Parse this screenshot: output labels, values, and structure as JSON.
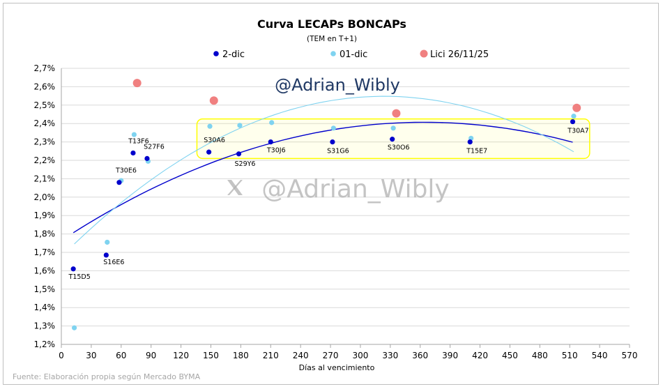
{
  "chart_data": {
    "type": "scatter",
    "title": "Curva LECAPs BONCAPs",
    "subtitle": "(TEM en T+1)",
    "xlabel": "Días al vencimiento",
    "ylabel": "",
    "xlim": [
      0,
      570
    ],
    "ylim": [
      1.2,
      2.7
    ],
    "x_ticks": [
      "0",
      "30",
      "60",
      "90",
      "120",
      "150",
      "180",
      "210",
      "240",
      "270",
      "300",
      "330",
      "360",
      "390",
      "420",
      "450",
      "480",
      "510",
      "540",
      "570"
    ],
    "y_ticks": [
      "1,2%",
      "1,3%",
      "1,4%",
      "1,5%",
      "1,6%",
      "1,7%",
      "1,8%",
      "1,9%",
      "2,0%",
      "2,1%",
      "2,2%",
      "2,3%",
      "2,4%",
      "2,5%",
      "2,6%",
      "2,7%"
    ],
    "grid": "horizontal",
    "legend_position": "top",
    "watermark_top": "@Adrian_Wibly",
    "watermark_center": "@Adrian_Wibly",
    "watermark_icon": "x-logo-icon",
    "source": "Fuente: Elaboración propia según Mercado BYMA",
    "highlight_color": "#ffff00",
    "series": [
      {
        "name": "2-dic",
        "color": "#0000cc",
        "points": [
          {
            "x": 12,
            "y": 1.61,
            "label": "T15D5"
          },
          {
            "x": 45,
            "y": 1.685,
            "label": "S16E6"
          },
          {
            "x": 58,
            "y": 2.08,
            "label": "T30E6"
          },
          {
            "x": 72,
            "y": 2.24,
            "label": "T13F6"
          },
          {
            "x": 86,
            "y": 2.21,
            "label": "S27F6"
          },
          {
            "x": 148,
            "y": 2.245,
            "label": "S30A6"
          },
          {
            "x": 178,
            "y": 2.235,
            "label": "S29Y6"
          },
          {
            "x": 210,
            "y": 2.3,
            "label": "T30J6"
          },
          {
            "x": 272,
            "y": 2.3,
            "label": "S31G6"
          },
          {
            "x": 332,
            "y": 2.315,
            "label": "S30O6"
          },
          {
            "x": 410,
            "y": 2.3,
            "label": "T15E7"
          },
          {
            "x": 513,
            "y": 2.41,
            "label": "T30A7"
          }
        ]
      },
      {
        "name": "01-dic",
        "color": "#7fd3f0",
        "points": [
          {
            "x": 13,
            "y": 1.29
          },
          {
            "x": 46,
            "y": 1.755
          },
          {
            "x": 60,
            "y": 2.09
          },
          {
            "x": 73,
            "y": 2.34
          },
          {
            "x": 87,
            "y": 2.195
          },
          {
            "x": 149,
            "y": 2.385
          },
          {
            "x": 179,
            "y": 2.39
          },
          {
            "x": 211,
            "y": 2.405
          },
          {
            "x": 273,
            "y": 2.375
          },
          {
            "x": 333,
            "y": 2.375
          },
          {
            "x": 411,
            "y": 2.32
          },
          {
            "x": 514,
            "y": 2.44
          }
        ]
      },
      {
        "name": "Lici 26/11/25",
        "color": "#f08080",
        "points": [
          {
            "x": 76,
            "y": 2.62
          },
          {
            "x": 153,
            "y": 2.525
          },
          {
            "x": 336,
            "y": 2.455
          },
          {
            "x": 517,
            "y": 2.485
          }
        ]
      }
    ],
    "trendlines": [
      {
        "series": "2-dic",
        "type": "polynomial",
        "order": 2,
        "color": "#0000cc",
        "x_from": 12,
        "x_to": 513,
        "points": [
          [
            12,
            1.81
          ],
          [
            60,
            1.96
          ],
          [
            100,
            2.065
          ],
          [
            150,
            2.18
          ],
          [
            200,
            2.275
          ],
          [
            250,
            2.35
          ],
          [
            300,
            2.395
          ],
          [
            350,
            2.41
          ],
          [
            400,
            2.395
          ],
          [
            450,
            2.36
          ],
          [
            513,
            2.305
          ]
        ]
      },
      {
        "series": "01-dic",
        "type": "polynomial",
        "order": 2,
        "color": "#7fd3f0",
        "x_from": 13,
        "x_to": 514,
        "points": [
          [
            13,
            1.715
          ],
          [
            60,
            1.985
          ],
          [
            100,
            2.15
          ],
          [
            150,
            2.31
          ],
          [
            200,
            2.43
          ],
          [
            250,
            2.5
          ],
          [
            300,
            2.535
          ],
          [
            350,
            2.53
          ],
          [
            400,
            2.485
          ],
          [
            450,
            2.41
          ],
          [
            514,
            2.265
          ]
        ]
      }
    ],
    "highlight_box": {
      "x_from": 136,
      "x_to": 530,
      "y_from": 2.21,
      "y_to": 2.425
    }
  }
}
